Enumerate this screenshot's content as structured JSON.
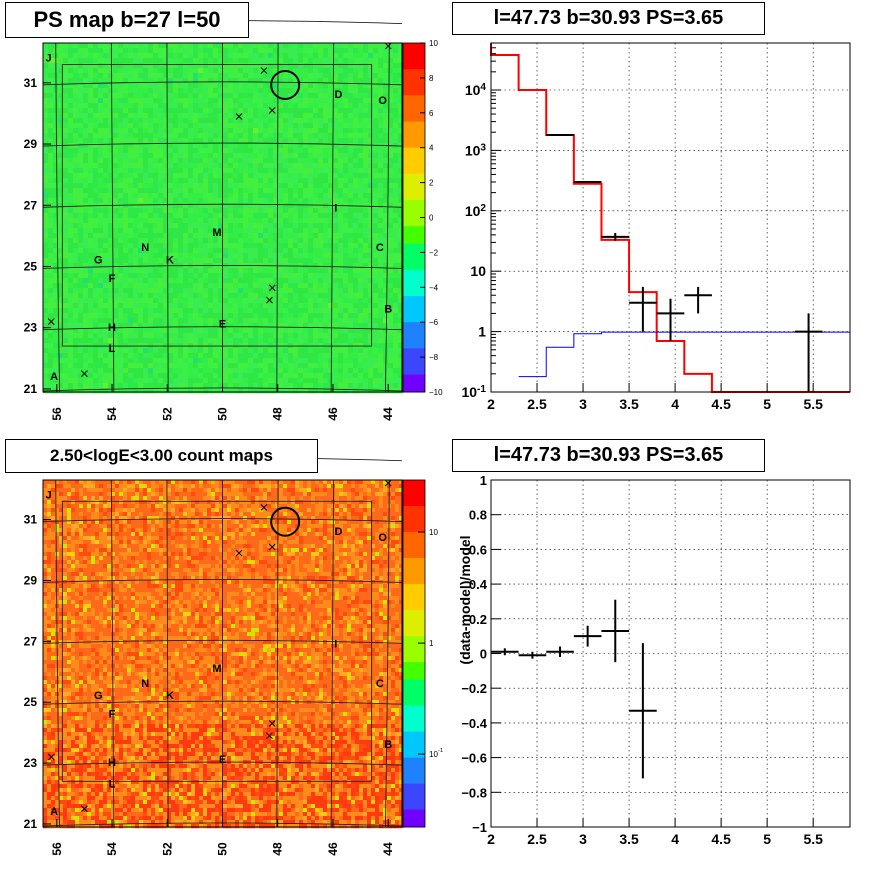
{
  "panels": {
    "tl_title": "PS map b=27 l=50",
    "tr_title": "l=47.73 b=30.93 PS=3.65",
    "bl_title": "2.50<logE<3.00 count maps",
    "br_title": "l=47.73 b=30.93 PS=3.65"
  },
  "chart_data": [
    {
      "type": "heatmap",
      "title": "PS map b=27 l=50",
      "x_ticks": [
        "56",
        "54",
        "52",
        "50",
        "48",
        "46",
        "44"
      ],
      "y_ticks": [
        "21",
        "23",
        "25",
        "27",
        "29",
        "31"
      ],
      "xlim": [
        56.5,
        43.5
      ],
      "ylim": [
        20.9,
        32.3
      ],
      "colorbar": {
        "min": -10,
        "max": 10,
        "ticks": [
          "10",
          "8",
          "6",
          "4",
          "2",
          "0",
          "−2",
          "−4",
          "−6",
          "−8",
          "−10"
        ]
      },
      "typical_value": 0,
      "source_labels": [
        {
          "label": "J",
          "l": 56.3,
          "b": 31.7
        },
        {
          "label": "D",
          "l": 45.8,
          "b": 30.5
        },
        {
          "label": "O",
          "l": 44.2,
          "b": 30.3
        },
        {
          "label": "I",
          "l": 45.9,
          "b": 26.8
        },
        {
          "label": "M",
          "l": 50.2,
          "b": 26.0
        },
        {
          "label": "N",
          "l": 52.8,
          "b": 25.5
        },
        {
          "label": "G",
          "l": 54.5,
          "b": 25.1
        },
        {
          "label": "K",
          "l": 51.9,
          "b": 25.1
        },
        {
          "label": "C",
          "l": 44.3,
          "b": 25.5
        },
        {
          "label": "F",
          "l": 54.0,
          "b": 24.5
        },
        {
          "label": "B",
          "l": 44.0,
          "b": 23.5
        },
        {
          "label": "H",
          "l": 54.0,
          "b": 22.9
        },
        {
          "label": "E",
          "l": 50.0,
          "b": 23.0
        },
        {
          "label": "L",
          "l": 54.0,
          "b": 22.2
        },
        {
          "label": "A",
          "l": 56.1,
          "b": 21.3
        }
      ],
      "marker": {
        "l": 47.73,
        "b": 30.93
      }
    },
    {
      "type": "line",
      "title": "l=47.73 b=30.93 PS=3.65",
      "yscale": "log",
      "xlim": [
        2,
        5.9
      ],
      "ylim": [
        0.1,
        60000
      ],
      "x_ticks": [
        "2",
        "2.5",
        "3",
        "3.5",
        "4",
        "4.5",
        "5",
        "5.5"
      ],
      "y_ticks": [
        "10^-1",
        "1",
        "10",
        "10^2",
        "10^3",
        "10^4"
      ],
      "grid": true,
      "series": [
        {
          "color": "#ff0000",
          "style": "step",
          "edges": [
            2,
            2.3,
            2.6,
            2.9,
            3.2,
            3.5,
            3.8,
            4.1,
            4.4,
            5.9
          ],
          "values": [
            38000,
            10000,
            1800,
            280,
            33,
            4.5,
            0.7,
            0.2,
            0.1
          ]
        },
        {
          "color": "#0000ff",
          "style": "step",
          "edges": [
            2.3,
            2.6,
            2.9,
            3.2,
            5.9
          ],
          "values": [
            0.18,
            0.55,
            0.92,
            0.98
          ]
        },
        {
          "color": "#000000",
          "style": "errorbar",
          "points": [
            {
              "x": 2.75,
              "y": 1800,
              "xerr": 0.15
            },
            {
              "x": 3.05,
              "y": 300,
              "xerr": 0.15
            },
            {
              "x": 3.35,
              "y": 37,
              "xerr": 0.15,
              "ylo": 32,
              "yhi": 43
            },
            {
              "x": 3.65,
              "y": 3,
              "xerr": 0.15,
              "ylo": 1,
              "yhi": 5.5
            },
            {
              "x": 3.95,
              "y": 2,
              "xerr": 0.15,
              "ylo": 0.7,
              "yhi": 3.5
            },
            {
              "x": 4.25,
              "y": 4,
              "xerr": 0.15,
              "ylo": 2,
              "yhi": 5.5
            },
            {
              "x": 5.45,
              "y": 1,
              "xerr": 0.15,
              "ylo": 0.1,
              "yhi": 2
            }
          ]
        }
      ]
    },
    {
      "type": "heatmap",
      "title": "2.50<logE<3.00 count maps",
      "x_ticks": [
        "56",
        "54",
        "52",
        "50",
        "48",
        "46",
        "44"
      ],
      "y_ticks": [
        "21",
        "23",
        "25",
        "27",
        "29",
        "31"
      ],
      "xlim": [
        56.5,
        43.5
      ],
      "ylim": [
        20.9,
        32.3
      ],
      "colorbar": {
        "scale": "log",
        "ticks": [
          "10",
          "1",
          "10^-1"
        ]
      },
      "typical_value": 7,
      "marker": {
        "l": 47.73,
        "b": 30.93
      }
    },
    {
      "type": "scatter",
      "title": "l=47.73 b=30.93 PS=3.65",
      "ylabel": "(data-model)/model",
      "xlim": [
        2,
        5.9
      ],
      "ylim": [
        -1,
        1
      ],
      "x_ticks": [
        "2",
        "2.5",
        "3",
        "3.5",
        "4",
        "4.5",
        "5",
        "5.5"
      ],
      "y_ticks": [
        "1",
        "0.8",
        "0.6",
        "0.4",
        "0.2",
        "0",
        "−0.2",
        "−0.4",
        "−0.6",
        "−0.8",
        "−1"
      ],
      "grid": true,
      "points": [
        {
          "x": 2.15,
          "y": 0.01,
          "xerr": 0.15,
          "yerr": 0.02
        },
        {
          "x": 2.45,
          "y": -0.01,
          "xerr": 0.15,
          "yerr": 0.02
        },
        {
          "x": 2.75,
          "y": 0.01,
          "xerr": 0.15,
          "yerr": 0.03
        },
        {
          "x": 3.05,
          "y": 0.1,
          "xerr": 0.15,
          "yerr": 0.06
        },
        {
          "x": 3.35,
          "y": 0.13,
          "xerr": 0.15,
          "yerr": 0.18
        },
        {
          "x": 3.65,
          "y": -0.33,
          "xerr": 0.15,
          "yerr": 0.39
        }
      ]
    }
  ]
}
